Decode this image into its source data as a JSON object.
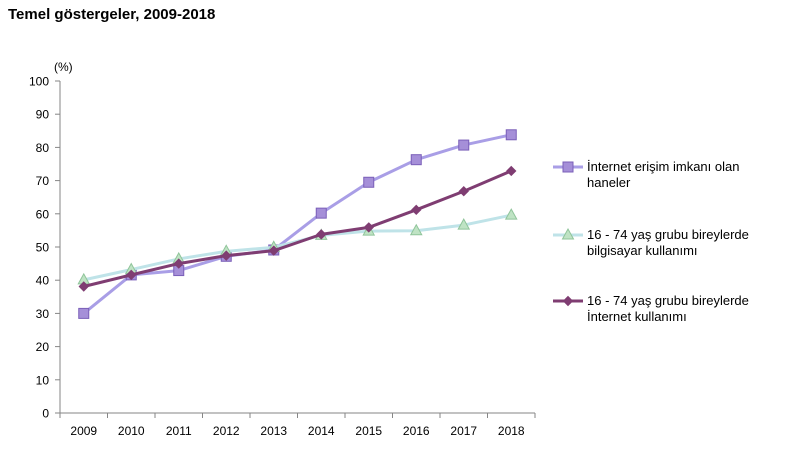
{
  "chart_title": "Temel göstergeler, 2009-2018",
  "chart_data": {
    "type": "line",
    "title": "Temel göstergeler, 2009-2018",
    "ylabel": "(%)",
    "xlabel": "",
    "x": [
      "2009",
      "2010",
      "2011",
      "2012",
      "2013",
      "2014",
      "2015",
      "2016",
      "2017",
      "2018"
    ],
    "ylim": [
      0,
      100
    ],
    "yticks": [
      0,
      10,
      20,
      30,
      40,
      50,
      60,
      70,
      80,
      90,
      100
    ],
    "grid": false,
    "legend_position": "right",
    "series": [
      {
        "name_lines": [
          "İnternet erişim imkanı olan",
          "haneler"
        ],
        "marker": "square",
        "color": "#a99ee6",
        "marker_fill": "#a58fd8",
        "marker_stroke": "#7a5fb8",
        "values": [
          30,
          41.6,
          42.9,
          47.2,
          49.1,
          60.2,
          69.5,
          76.3,
          80.7,
          83.8
        ]
      },
      {
        "name_lines": [
          "16 - 74 yaş grubu bireylerde",
          "bilgisayar kullanımı"
        ],
        "marker": "triangle",
        "color": "#bfe3e8",
        "marker_fill": "#bfe3c4",
        "marker_stroke": "#8fc49a",
        "values": [
          40.1,
          43.2,
          46.4,
          48.7,
          49.9,
          53.5,
          54.8,
          54.9,
          56.6,
          59.6
        ]
      },
      {
        "name_lines": [
          "16 - 74 yaş grubu bireylerde",
          "İnternet kullanımı"
        ],
        "marker": "diamond",
        "color": "#7f3d72",
        "marker_fill": "#7f3d72",
        "marker_stroke": "#7f3d72",
        "values": [
          38.1,
          41.6,
          45,
          47.4,
          48.9,
          53.8,
          55.9,
          61.2,
          66.8,
          72.9
        ]
      }
    ]
  }
}
